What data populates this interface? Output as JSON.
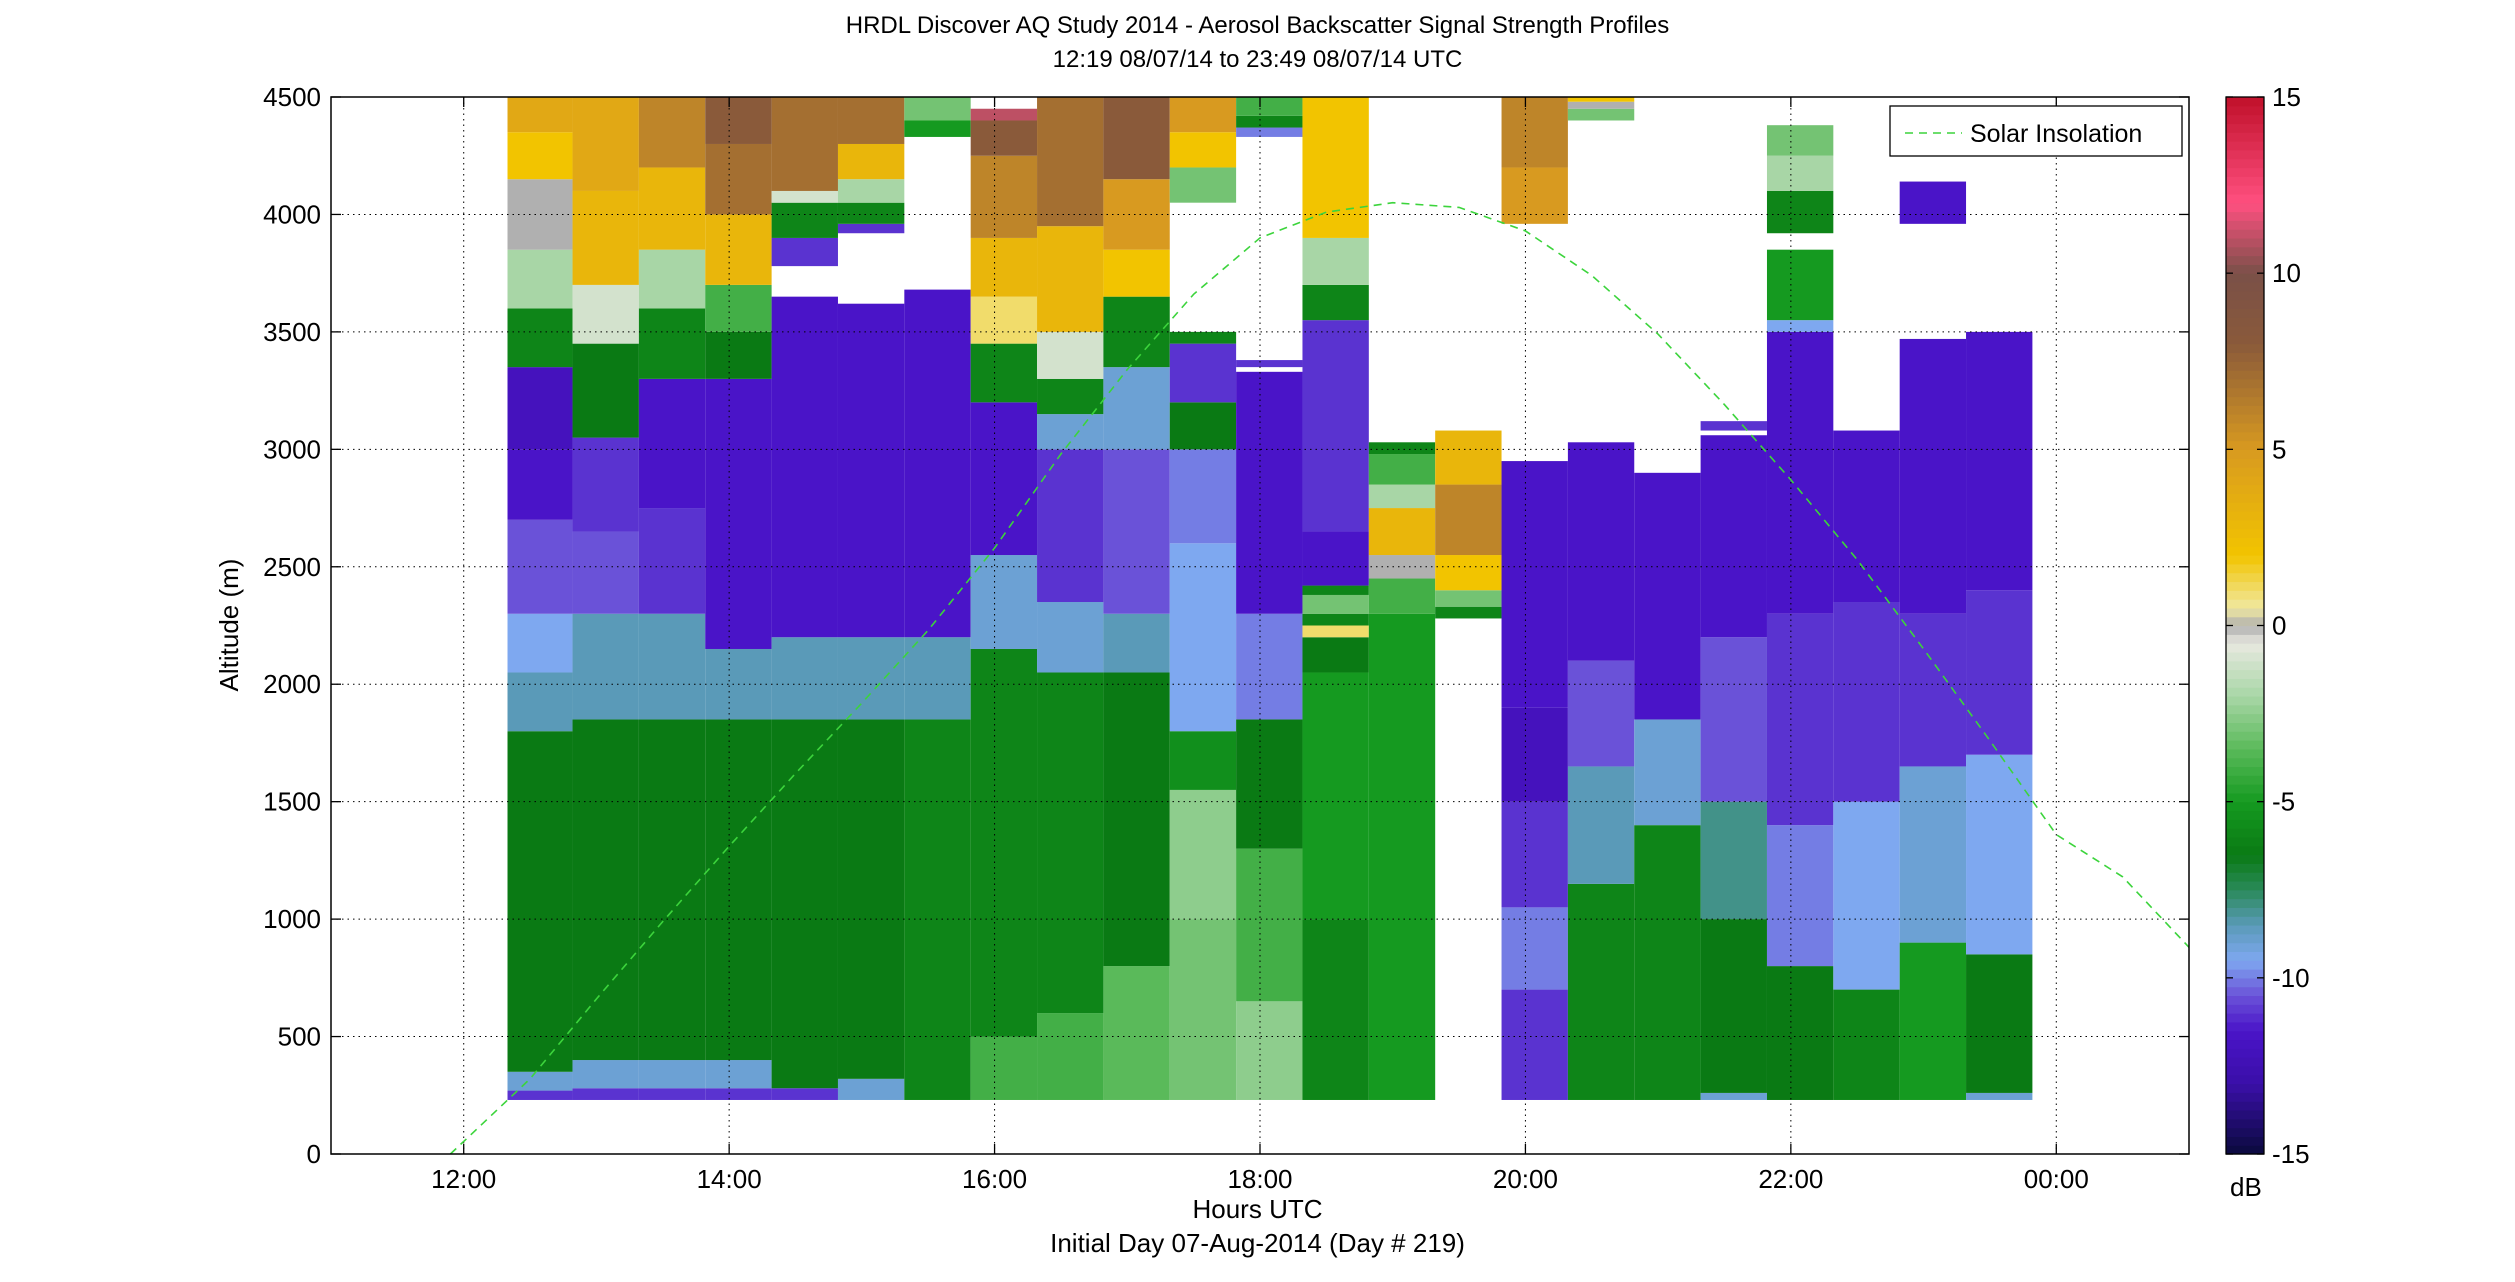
{
  "chart_data": {
    "type": "heatmap",
    "title": "HRDL Discover AQ Study 2014 - Aerosol Backscatter Signal Strength Profiles",
    "subtitle": "12:19 08/07/14 to 23:49 08/07/14  UTC",
    "xlabel": "Hours UTC",
    "xlabel_sub": "Initial Day 07-Aug-2014 (Day # 219)",
    "ylabel": "Altitude (m)",
    "xlim": [
      11,
      25
    ],
    "ylim": [
      0,
      4500
    ],
    "x_ticks": [
      12,
      14,
      16,
      18,
      20,
      22,
      24
    ],
    "x_tick_labels": [
      "12:00",
      "14:00",
      "16:00",
      "18:00",
      "20:00",
      "22:00",
      "00:00"
    ],
    "y_ticks": [
      0,
      500,
      1000,
      1500,
      2000,
      2500,
      3000,
      3500,
      4000,
      4500
    ],
    "y_tick_labels": [
      "0",
      "500",
      "1000",
      "1500",
      "2000",
      "2500",
      "3000",
      "3500",
      "4000",
      "4500"
    ],
    "grid": true,
    "colorbar": {
      "range": [
        -15,
        15
      ],
      "ticks": [
        -15,
        -10,
        -5,
        0,
        5,
        10,
        15
      ],
      "tick_labels": [
        "-15",
        "-10",
        "-5",
        "0",
        "5",
        "10",
        "15"
      ],
      "unit": "dB"
    },
    "legend": {
      "position": "top-right",
      "entries": [
        "Solar Insolation"
      ],
      "color": "#3cd43c"
    },
    "profiles": [
      {
        "t0": 12.33,
        "t1": 12.82,
        "segments": [
          [
            230,
            270,
            -11
          ],
          [
            270,
            350,
            -9
          ],
          [
            350,
            1800,
            -6.5
          ],
          [
            1800,
            2050,
            -8.5
          ],
          [
            2050,
            2300,
            -9.5
          ],
          [
            2300,
            2700,
            -10.5
          ],
          [
            2700,
            3000,
            -11.5
          ],
          [
            3000,
            3350,
            -12
          ],
          [
            3350,
            3600,
            -6
          ],
          [
            3600,
            3850,
            -2
          ],
          [
            3850,
            4150,
            0
          ],
          [
            4150,
            4350,
            2
          ],
          [
            4350,
            4500,
            4
          ]
        ]
      },
      {
        "t0": 12.82,
        "t1": 13.32,
        "segments": [
          [
            230,
            280,
            -11
          ],
          [
            280,
            400,
            -9
          ],
          [
            400,
            1850,
            -6.5
          ],
          [
            1850,
            2300,
            -8.5
          ],
          [
            2300,
            2650,
            -10.5
          ],
          [
            2650,
            3050,
            -11
          ],
          [
            3050,
            3450,
            -6.5
          ],
          [
            3450,
            3700,
            -1
          ],
          [
            3700,
            4100,
            3
          ],
          [
            4100,
            4500,
            4
          ]
        ]
      },
      {
        "t0": 13.32,
        "t1": 13.82,
        "segments": [
          [
            230,
            280,
            -11
          ],
          [
            280,
            400,
            -9
          ],
          [
            400,
            1850,
            -6.5
          ],
          [
            1850,
            2300,
            -8.5
          ],
          [
            2300,
            2750,
            -11
          ],
          [
            2750,
            3300,
            -11.5
          ],
          [
            3300,
            3600,
            -6
          ],
          [
            3600,
            3850,
            -2
          ],
          [
            3850,
            4200,
            3
          ],
          [
            4200,
            4500,
            6
          ]
        ]
      },
      {
        "t0": 13.82,
        "t1": 14.32,
        "segments": [
          [
            230,
            280,
            -11
          ],
          [
            280,
            400,
            -9
          ],
          [
            400,
            1850,
            -6.5
          ],
          [
            1850,
            2150,
            -8.5
          ],
          [
            2150,
            3300,
            -11.5
          ],
          [
            3300,
            3500,
            -6.5
          ],
          [
            3500,
            3700,
            -4
          ],
          [
            3700,
            4000,
            3
          ],
          [
            4000,
            4300,
            7
          ],
          [
            4300,
            4500,
            8
          ]
        ]
      },
      {
        "t0": 14.32,
        "t1": 14.82,
        "segments": [
          [
            230,
            280,
            -11
          ],
          [
            280,
            1850,
            -6.5
          ],
          [
            1850,
            2200,
            -8.5
          ],
          [
            2200,
            3650,
            -11.5
          ],
          [
            3780,
            3900,
            -11
          ],
          [
            3900,
            4050,
            -6
          ],
          [
            4050,
            4100,
            -1
          ],
          [
            4100,
            4500,
            7
          ]
        ]
      },
      {
        "t0": 14.82,
        "t1": 15.32,
        "segments": [
          [
            230,
            320,
            -9
          ],
          [
            320,
            1850,
            -6.5
          ],
          [
            1850,
            2200,
            -8.5
          ],
          [
            2200,
            3620,
            -11.5
          ],
          [
            3920,
            3960,
            -11
          ],
          [
            3960,
            4050,
            -6
          ],
          [
            4050,
            4150,
            -2
          ],
          [
            4150,
            4300,
            3
          ],
          [
            4300,
            4500,
            7
          ]
        ]
      },
      {
        "t0": 15.32,
        "t1": 15.82,
        "segments": [
          [
            230,
            1850,
            -6
          ],
          [
            1850,
            2200,
            -8.5
          ],
          [
            2200,
            3680,
            -11.5
          ],
          [
            4330,
            4400,
            -5
          ],
          [
            4400,
            4500,
            -3
          ]
        ]
      },
      {
        "t0": 15.82,
        "t1": 16.32,
        "segments": [
          [
            230,
            500,
            -4
          ],
          [
            500,
            2150,
            -6
          ],
          [
            2150,
            2550,
            -9
          ],
          [
            2550,
            3200,
            -11.5
          ],
          [
            3200,
            3450,
            -6
          ],
          [
            3450,
            3650,
            1
          ],
          [
            3650,
            3900,
            3
          ],
          [
            3900,
            4250,
            6
          ],
          [
            4250,
            4400,
            8
          ],
          [
            4400,
            4450,
            11
          ]
        ]
      },
      {
        "t0": 16.32,
        "t1": 16.82,
        "segments": [
          [
            230,
            600,
            -4
          ],
          [
            600,
            2050,
            -6
          ],
          [
            2050,
            2350,
            -9
          ],
          [
            2350,
            3000,
            -11
          ],
          [
            3000,
            3150,
            -9
          ],
          [
            3150,
            3300,
            -6
          ],
          [
            3300,
            3500,
            -1
          ],
          [
            3500,
            3950,
            3
          ],
          [
            3950,
            4500,
            7
          ]
        ]
      },
      {
        "t0": 16.82,
        "t1": 17.32,
        "segments": [
          [
            230,
            800,
            -3.5
          ],
          [
            800,
            2050,
            -6.5
          ],
          [
            2050,
            2300,
            -8.5
          ],
          [
            2300,
            3000,
            -10.5
          ],
          [
            3000,
            3350,
            -9
          ],
          [
            3350,
            3650,
            -6
          ],
          [
            3650,
            3850,
            2
          ],
          [
            3850,
            4150,
            5
          ],
          [
            4150,
            4500,
            8
          ]
        ]
      },
      {
        "t0": 17.32,
        "t1": 17.82,
        "segments": [
          [
            230,
            1000,
            -3
          ],
          [
            1000,
            1550,
            -2.5
          ],
          [
            1550,
            1800,
            -5.5
          ],
          [
            1800,
            2600,
            -9.5
          ],
          [
            2600,
            3000,
            -10
          ],
          [
            3000,
            3200,
            -6.5
          ],
          [
            3200,
            3450,
            -11
          ],
          [
            3450,
            3500,
            -6
          ],
          [
            4050,
            4200,
            -3
          ],
          [
            4200,
            4350,
            2
          ],
          [
            4350,
            4500,
            5
          ]
        ]
      },
      {
        "t0": 17.82,
        "t1": 18.32,
        "segments": [
          [
            230,
            650,
            -2.5
          ],
          [
            650,
            1300,
            -4
          ],
          [
            1300,
            1850,
            -6.5
          ],
          [
            1850,
            2300,
            -10
          ],
          [
            2300,
            3330,
            -11.5
          ],
          [
            3350,
            3380,
            -11
          ],
          [
            4330,
            4370,
            -10
          ],
          [
            4370,
            4420,
            -6
          ],
          [
            4420,
            4500,
            -4
          ]
        ]
      },
      {
        "t0": 18.32,
        "t1": 18.82,
        "segments": [
          [
            230,
            1000,
            -6
          ],
          [
            1000,
            2050,
            -5
          ],
          [
            2050,
            2200,
            -6.5
          ],
          [
            2200,
            2250,
            1
          ],
          [
            2250,
            2300,
            -6
          ],
          [
            2300,
            2380,
            -3
          ],
          [
            2380,
            2420,
            -6
          ],
          [
            2420,
            2650,
            -11.5
          ],
          [
            2650,
            3550,
            -11
          ],
          [
            3550,
            3700,
            -6
          ],
          [
            3700,
            3900,
            -2
          ],
          [
            3900,
            4500,
            2
          ]
        ]
      },
      {
        "t0": 18.82,
        "t1": 19.32,
        "segments": [
          [
            230,
            2300,
            -5
          ],
          [
            2300,
            2450,
            -4
          ],
          [
            2450,
            2550,
            0
          ],
          [
            2550,
            2750,
            3
          ],
          [
            2750,
            2850,
            -2
          ],
          [
            2850,
            2980,
            -4
          ],
          [
            2980,
            3030,
            -6
          ]
        ]
      },
      {
        "t0": 19.32,
        "t1": 19.82,
        "segments": [
          [
            2280,
            2330,
            -6
          ],
          [
            2330,
            2400,
            -3
          ],
          [
            2400,
            2550,
            2
          ],
          [
            2550,
            2850,
            6
          ],
          [
            2850,
            3080,
            3
          ]
        ]
      },
      {
        "t0": 19.82,
        "t1": 20.32,
        "segments": [
          [
            230,
            700,
            -11
          ],
          [
            700,
            1050,
            -10
          ],
          [
            1050,
            1500,
            -11
          ],
          [
            1500,
            1900,
            -12
          ],
          [
            1900,
            2950,
            -11.5
          ],
          [
            3960,
            4200,
            5
          ],
          [
            4200,
            4500,
            6
          ]
        ]
      },
      {
        "t0": 20.32,
        "t1": 20.82,
        "segments": [
          [
            230,
            1150,
            -6
          ],
          [
            1150,
            1650,
            -8.5
          ],
          [
            1650,
            2100,
            -10.5
          ],
          [
            2100,
            3030,
            -11.5
          ],
          [
            4400,
            4450,
            -3
          ],
          [
            4450,
            4480,
            0
          ],
          [
            4480,
            4500,
            2
          ]
        ]
      },
      {
        "t0": 20.82,
        "t1": 21.32,
        "segments": [
          [
            230,
            1400,
            -6
          ],
          [
            1400,
            1850,
            -9
          ],
          [
            1850,
            2900,
            -11.5
          ]
        ]
      },
      {
        "t0": 21.32,
        "t1": 21.82,
        "segments": [
          [
            230,
            260,
            -9
          ],
          [
            260,
            1000,
            -6.5
          ],
          [
            1000,
            1500,
            -8
          ],
          [
            1500,
            2200,
            -10.5
          ],
          [
            2200,
            3060,
            -11.5
          ],
          [
            3080,
            3120,
            -11
          ]
        ]
      },
      {
        "t0": 21.82,
        "t1": 22.32,
        "segments": [
          [
            230,
            800,
            -6.5
          ],
          [
            800,
            1400,
            -10
          ],
          [
            1400,
            2300,
            -11
          ],
          [
            2300,
            3500,
            -11.5
          ],
          [
            3500,
            3550,
            -9.5
          ],
          [
            3550,
            3850,
            -5
          ],
          [
            3920,
            4100,
            -6
          ],
          [
            4100,
            4250,
            -2
          ],
          [
            4250,
            4380,
            -3
          ]
        ]
      },
      {
        "t0": 22.32,
        "t1": 22.82,
        "segments": [
          [
            230,
            700,
            -6
          ],
          [
            700,
            1500,
            -9.5
          ],
          [
            1500,
            2350,
            -11
          ],
          [
            2350,
            3080,
            -11.5
          ]
        ]
      },
      {
        "t0": 22.82,
        "t1": 23.32,
        "segments": [
          [
            230,
            900,
            -5
          ],
          [
            900,
            1650,
            -9
          ],
          [
            1650,
            2300,
            -11
          ],
          [
            2300,
            3470,
            -11.5
          ],
          [
            3960,
            4140,
            -11.5
          ]
        ]
      },
      {
        "t0": 23.32,
        "t1": 23.82,
        "segments": [
          [
            230,
            260,
            -9
          ],
          [
            260,
            850,
            -6.5
          ],
          [
            850,
            1700,
            -9.5
          ],
          [
            1700,
            2400,
            -11
          ],
          [
            2400,
            3500,
            -11.5
          ]
        ]
      }
    ],
    "solar_insolation_curve": {
      "note_units": "altitude axis units (m)",
      "x": [
        11.9,
        12.5,
        13.0,
        13.5,
        14.0,
        14.5,
        15.0,
        15.5,
        16.0,
        16.5,
        17.0,
        17.5,
        18.0,
        18.5,
        19.0,
        19.5,
        20.0,
        20.5,
        21.0,
        21.5,
        22.0,
        22.5,
        23.0,
        23.5,
        24.0,
        24.5,
        25.0
      ],
      "y": [
        -100,
        320,
        660,
        990,
        1310,
        1620,
        1920,
        2230,
        2580,
        2980,
        3340,
        3660,
        3900,
        4010,
        4050,
        4030,
        3930,
        3740,
        3490,
        3190,
        2870,
        2530,
        2150,
        1760,
        1360,
        1180,
        880
      ]
    }
  }
}
